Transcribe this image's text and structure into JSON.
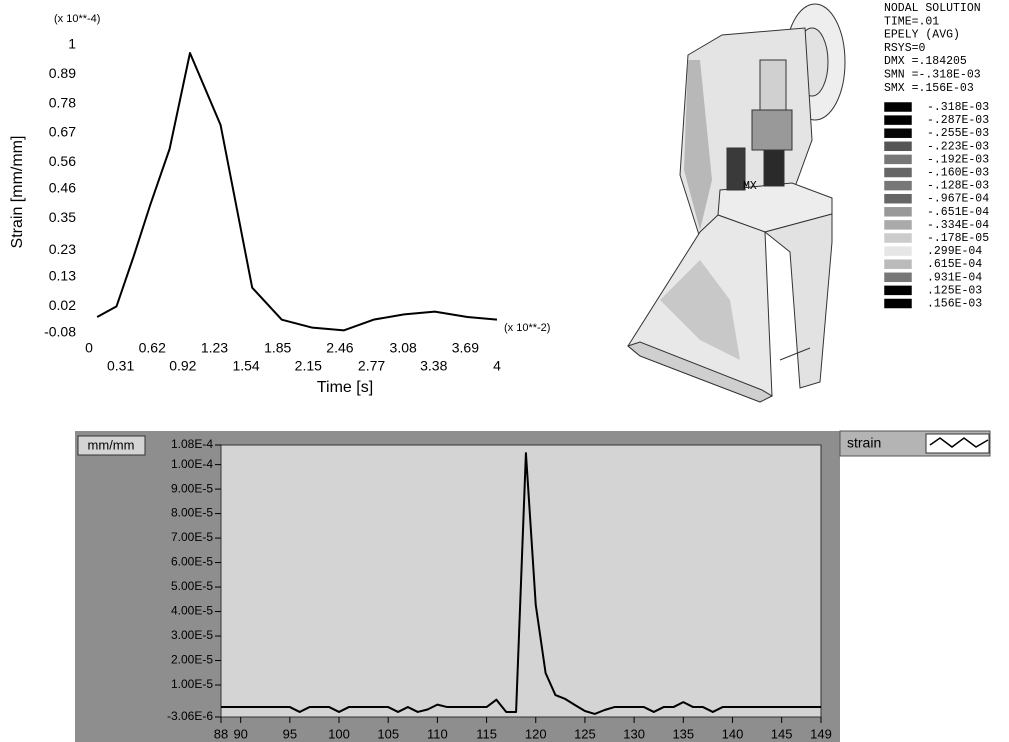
{
  "chart_data": [
    {
      "type": "line",
      "y_scale_label": "(x 10**-4)",
      "x_scale_label": "(x 10**-2)",
      "ylabel": "Strain [mm/mm]",
      "xlabel": "Time [s]",
      "x": [
        0.08,
        0.27,
        0.44,
        0.6,
        0.79,
        0.99,
        1.29,
        1.6,
        1.89,
        2.19,
        2.5,
        2.79,
        3.09,
        3.39,
        3.71,
        4.0
      ],
      "values": [
        -0.02,
        0.02,
        0.21,
        0.4,
        0.61,
        0.97,
        0.7,
        0.09,
        -0.03,
        -0.06,
        -0.07,
        -0.03,
        -0.01,
        0.0,
        -0.02,
        -0.03
      ],
      "color": "#000000",
      "xlim": [
        0,
        4
      ],
      "ylim": [
        -0.08,
        1
      ],
      "xticks": [
        0,
        0.31,
        0.62,
        0.92,
        1.23,
        1.54,
        1.85,
        2.15,
        2.46,
        2.77,
        3.08,
        3.38,
        3.69,
        4
      ],
      "yticks": [
        -0.08,
        0.02,
        0.13,
        0.23,
        0.35,
        0.46,
        0.56,
        0.67,
        0.78,
        0.89,
        1
      ]
    },
    {
      "type": "line",
      "y_unit": "mm/mm",
      "x": [
        88,
        89,
        90,
        91,
        92,
        93,
        94,
        95,
        96,
        97,
        98,
        99,
        100,
        101,
        102,
        103,
        104,
        105,
        106,
        107,
        108,
        109,
        110,
        111,
        112,
        113,
        114,
        115,
        116,
        117,
        118,
        119,
        120,
        121,
        122,
        123,
        124,
        125,
        126,
        127,
        128,
        129,
        130,
        131,
        132,
        133,
        134,
        135,
        136,
        137,
        138,
        139,
        140,
        141,
        142,
        143,
        144,
        145,
        146,
        147,
        148,
        149
      ],
      "series": [
        {
          "name": "strain",
          "color": "#000000",
          "values": [
            1e-06,
            1e-06,
            1e-06,
            1e-06,
            1e-06,
            1e-06,
            1e-06,
            1e-06,
            -1e-06,
            1e-06,
            1e-06,
            1e-06,
            -1e-06,
            1e-06,
            1e-06,
            1e-06,
            1e-06,
            1e-06,
            -1e-06,
            1e-06,
            -1e-06,
            0,
            2e-06,
            1e-06,
            1e-06,
            1e-06,
            1e-06,
            1e-06,
            4e-06,
            -1e-06,
            -1e-06,
            0.0001047,
            4.27e-05,
            1.49e-05,
            5.9e-06,
            4.3e-06,
            1.8e-06,
            -6e-07,
            -1.8e-06,
            -2e-07,
            1e-06,
            1e-06,
            1e-06,
            1e-06,
            -1e-06,
            1e-06,
            1e-06,
            3e-06,
            1e-06,
            1e-06,
            -1e-06,
            1e-06,
            1e-06,
            1e-06,
            1e-06,
            1e-06,
            1e-06,
            1e-06,
            1e-06,
            1e-06,
            1e-06,
            1e-06
          ]
        }
      ],
      "xlim": [
        88,
        149
      ],
      "ylim": [
        -3.06e-06,
        0.000108
      ],
      "xticks": [
        88,
        90,
        95,
        100,
        105,
        110,
        115,
        120,
        125,
        130,
        135,
        140,
        145,
        149
      ],
      "yticks": [
        {
          "value": -3.06e-06,
          "label": "-3.06E-6"
        },
        {
          "value": 1e-05,
          "label": "1.00E-5"
        },
        {
          "value": 2e-05,
          "label": "2.00E-5"
        },
        {
          "value": 3e-05,
          "label": "3.00E-5"
        },
        {
          "value": 4e-05,
          "label": "4.00E-5"
        },
        {
          "value": 5e-05,
          "label": "5.00E-5"
        },
        {
          "value": 6e-05,
          "label": "6.00E-5"
        },
        {
          "value": 7e-05,
          "label": "7.00E-5"
        },
        {
          "value": 8e-05,
          "label": "8.00E-5"
        },
        {
          "value": 9e-05,
          "label": "9.00E-5"
        },
        {
          "value": 0.0001,
          "label": "1.00E-4"
        },
        {
          "value": 0.000108,
          "label": "1.08E-4"
        }
      ]
    }
  ],
  "contour": {
    "header": [
      "NODAL SOLUTION",
      "TIME=.01",
      "EPELY     (AVG)",
      "RSYS=0",
      "DMX =.184205",
      "SMN =-.318E-03",
      "SMX =.156E-03"
    ],
    "max_marker": "MX",
    "levels": [
      {
        "label": "-.318E-03",
        "color": "#000000"
      },
      {
        "label": "-.287E-03",
        "color": "#000000"
      },
      {
        "label": "-.255E-03",
        "color": "#050505"
      },
      {
        "label": "-.223E-03",
        "color": "#555555"
      },
      {
        "label": "-.192E-03",
        "color": "#777777"
      },
      {
        "label": "-.160E-03",
        "color": "#666666"
      },
      {
        "label": "-.128E-03",
        "color": "#777777"
      },
      {
        "label": "-.967E-04",
        "color": "#666666"
      },
      {
        "label": "-.651E-04",
        "color": "#999999"
      },
      {
        "label": "-.334E-04",
        "color": "#aaaaaa"
      },
      {
        "label": "-.178E-05",
        "color": "#cccccc"
      },
      {
        "label": ".299E-04",
        "color": "#e6e6e6"
      },
      {
        "label": ".615E-04",
        "color": "#bbbbbb"
      },
      {
        "label": ".931E-04",
        "color": "#777777"
      },
      {
        "label": ".125E-03",
        "color": "#000000"
      },
      {
        "label": ".156E-03",
        "color": "#000000"
      }
    ]
  }
}
